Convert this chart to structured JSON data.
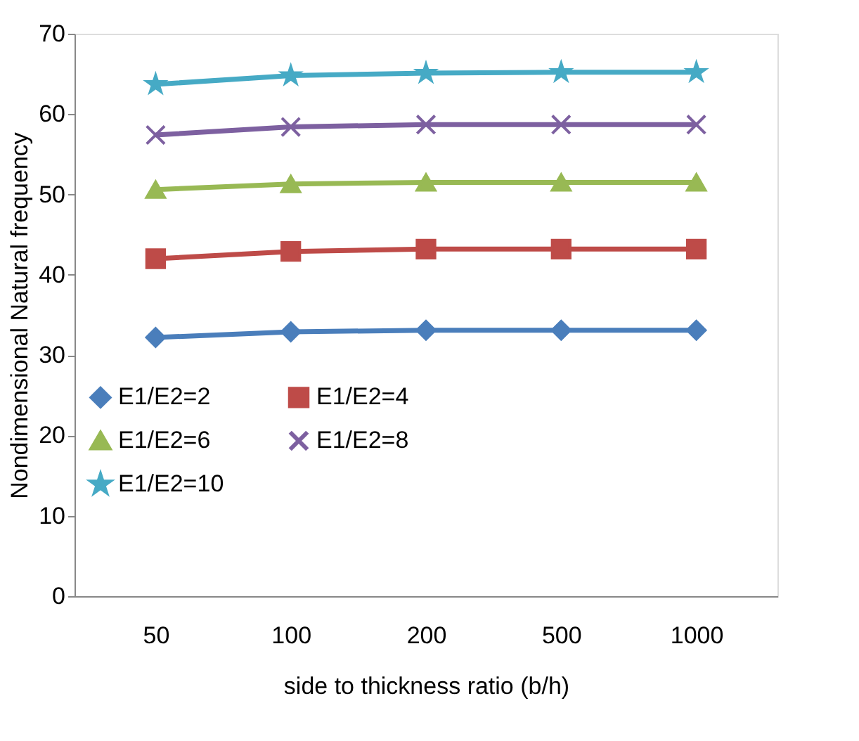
{
  "chart_data": {
    "type": "line",
    "xlabel": "side to thickness ratio (b/h)",
    "ylabel": "Nondimensional Natural frequency",
    "categories": [
      "50",
      "100",
      "200",
      "500",
      "1000"
    ],
    "ylim": [
      0,
      70
    ],
    "yticks": [
      0,
      10,
      20,
      30,
      40,
      50,
      60,
      70
    ],
    "grid": false,
    "legend": "bottom left",
    "line_style": "solid",
    "series": [
      {
        "name": "E1/E2=2",
        "color": "#4a7ebb",
        "marker": "diamond",
        "values": [
          32.2,
          32.9,
          33.1,
          33.1,
          33.1
        ]
      },
      {
        "name": "E1/E2=4",
        "color": "#be4b48",
        "marker": "square",
        "values": [
          42.0,
          42.9,
          43.2,
          43.2,
          43.2
        ]
      },
      {
        "name": "E1/E2=6",
        "color": "#98b954",
        "marker": "triangle",
        "values": [
          50.6,
          51.3,
          51.5,
          51.5,
          51.5
        ]
      },
      {
        "name": "E1/E2=8",
        "color": "#7d60a0",
        "marker": "cross",
        "values": [
          57.4,
          58.4,
          58.7,
          58.7,
          58.7
        ]
      },
      {
        "name": "E1/E2=10",
        "color": "#46aac5",
        "marker": "star",
        "values": [
          63.7,
          64.8,
          65.1,
          65.2,
          65.2
        ]
      }
    ]
  }
}
